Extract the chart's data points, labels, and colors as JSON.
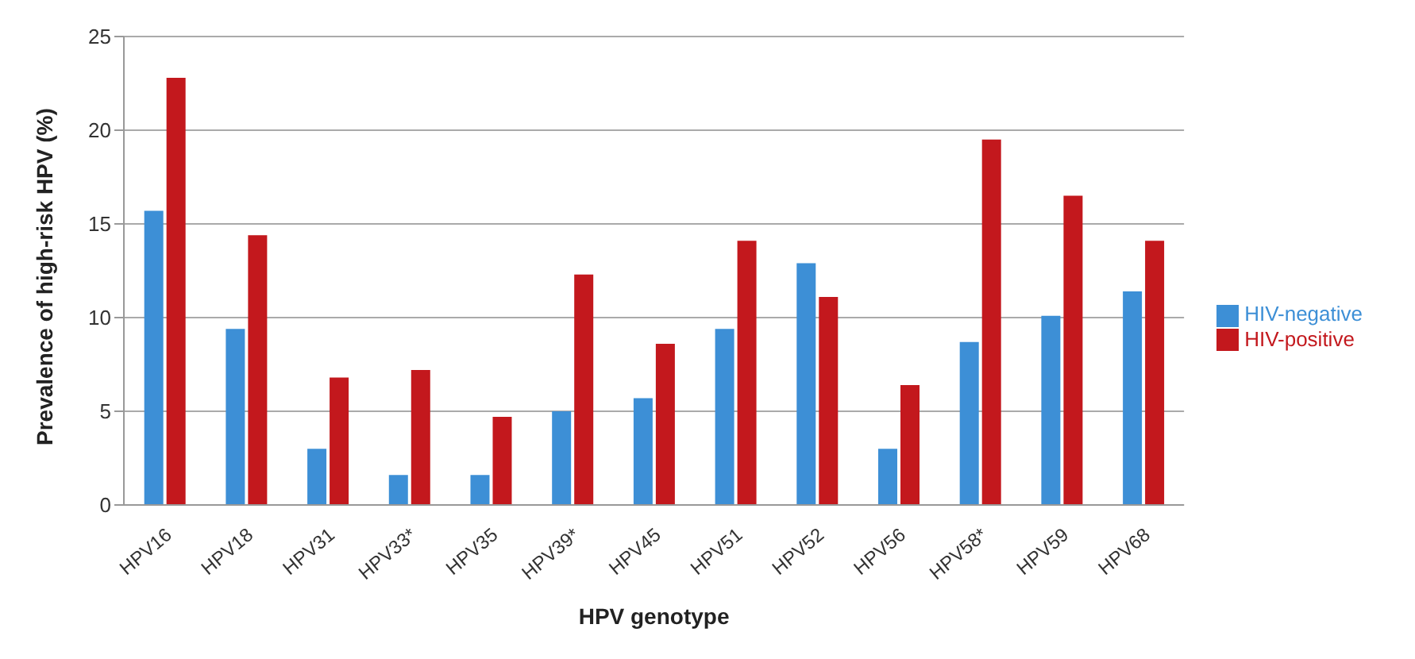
{
  "chart_data": {
    "type": "bar",
    "xlabel": "HPV genotype",
    "ylabel": "Prevalence of high-risk HPV (%)",
    "categories": [
      "HPV16",
      "HPV18",
      "HPV31",
      "HPV33*",
      "HPV35",
      "HPV39*",
      "HPV45",
      "HPV51",
      "HPV52",
      "HPV56",
      "HPV58*",
      "HPV59",
      "HPV68"
    ],
    "series": [
      {
        "name": "HIV-negative",
        "color": "#3d8fd6",
        "values": [
          15.7,
          9.4,
          3.0,
          1.6,
          1.6,
          5.0,
          5.7,
          9.4,
          12.9,
          3.0,
          8.7,
          10.1,
          11.4
        ]
      },
      {
        "name": "HIV-positive",
        "color": "#c3181d",
        "values": [
          22.8,
          14.4,
          6.8,
          7.2,
          4.7,
          12.3,
          8.6,
          14.1,
          11.1,
          6.4,
          19.5,
          16.5,
          14.1
        ]
      }
    ],
    "ylim": [
      0,
      25
    ],
    "yticks": [
      0,
      5,
      10,
      15,
      20,
      25
    ],
    "grid": "y",
    "legend": "right"
  }
}
